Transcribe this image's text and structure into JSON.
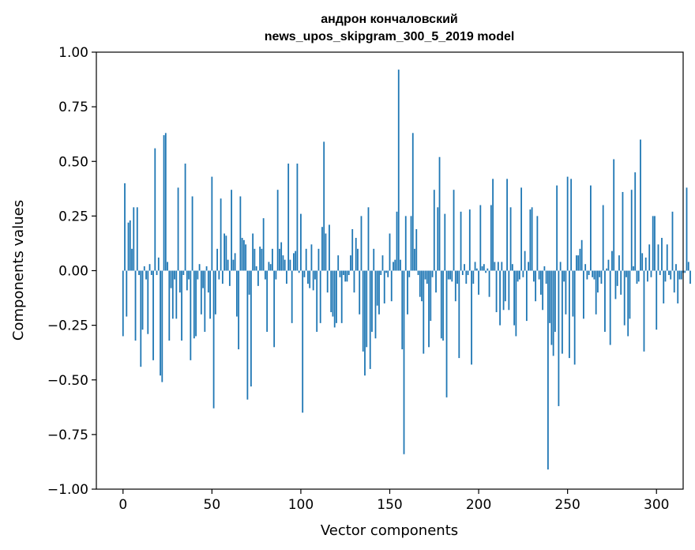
{
  "chart_data": {
    "type": "bar",
    "title_line1": "андрон кончаловский",
    "title_line2": "news_upos_skipgram_300_5_2019 model",
    "xlabel": "Vector components",
    "ylabel": "Components values",
    "xlim": [
      -15,
      315
    ],
    "ylim": [
      -1.0,
      1.0
    ],
    "xticks": [
      0,
      50,
      100,
      150,
      200,
      250,
      300
    ],
    "xtick_labels": [
      "0",
      "50",
      "100",
      "150",
      "200",
      "250",
      "300"
    ],
    "yticks": [
      1.0,
      0.75,
      0.5,
      0.25,
      0.0,
      -0.25,
      -0.5,
      -0.75,
      -1.0
    ],
    "ytick_labels": [
      "1.00",
      "0.75",
      "0.50",
      "0.25",
      "0.00",
      "−0.25",
      "−0.50",
      "−0.75",
      "−1.00"
    ],
    "bar_color": "#1f77b4",
    "values": [
      -0.3,
      0.4,
      -0.21,
      0.22,
      0.23,
      0.1,
      0.29,
      -0.32,
      0.29,
      -0.02,
      -0.44,
      -0.27,
      0.02,
      -0.04,
      -0.29,
      0.03,
      -0.02,
      -0.41,
      0.56,
      -0.02,
      0.06,
      -0.48,
      -0.51,
      0.62,
      0.63,
      0.04,
      -0.32,
      -0.08,
      -0.22,
      -0.04,
      -0.22,
      0.38,
      -0.1,
      -0.32,
      -0.02,
      0.49,
      -0.09,
      -0.04,
      -0.41,
      0.34,
      -0.31,
      -0.3,
      -0.04,
      0.03,
      -0.2,
      -0.08,
      -0.28,
      0.02,
      -0.1,
      -0.22,
      0.43,
      -0.63,
      -0.2,
      0.1,
      -0.04,
      0.33,
      -0.06,
      0.17,
      0.16,
      0.05,
      -0.07,
      0.37,
      0.05,
      0.08,
      -0.21,
      -0.36,
      0.34,
      0.15,
      0.14,
      0.12,
      -0.59,
      -0.11,
      -0.53,
      0.17,
      0.1,
      0.02,
      -0.07,
      0.11,
      0.1,
      0.24,
      -0.04,
      -0.28,
      0.04,
      0.03,
      0.1,
      -0.35,
      -0.04,
      0.37,
      0.1,
      0.13,
      0.07,
      0.05,
      -0.06,
      0.49,
      0.05,
      -0.24,
      0.08,
      0.09,
      0.49,
      -0.01,
      0.26,
      -0.65,
      -0.03,
      0.1,
      -0.06,
      -0.08,
      0.12,
      -0.09,
      -0.04,
      -0.28,
      0.1,
      -0.24,
      0.2,
      0.59,
      0.17,
      -0.1,
      0.21,
      -0.19,
      -0.21,
      -0.26,
      -0.24,
      0.07,
      -0.03,
      -0.24,
      -0.02,
      -0.05,
      -0.05,
      -0.02,
      0.07,
      0.19,
      -0.1,
      0.15,
      0.1,
      -0.2,
      0.25,
      -0.37,
      -0.48,
      -0.35,
      0.29,
      -0.45,
      -0.28,
      0.1,
      -0.31,
      -0.16,
      -0.2,
      -0.02,
      0.07,
      -0.15,
      -0.01,
      -0.03,
      0.17,
      -0.14,
      0.04,
      0.05,
      0.27,
      0.92,
      0.05,
      -0.36,
      -0.84,
      0.25,
      -0.2,
      -0.03,
      0.25,
      0.63,
      0.1,
      0.19,
      -0.02,
      -0.12,
      -0.14,
      -0.38,
      -0.04,
      -0.06,
      -0.35,
      -0.23,
      -0.03,
      0.37,
      -0.1,
      0.29,
      0.52,
      -0.31,
      -0.32,
      0.26,
      -0.58,
      -0.04,
      -0.04,
      -0.05,
      0.37,
      -0.14,
      -0.06,
      -0.4,
      0.27,
      -0.02,
      0.03,
      -0.06,
      -0.02,
      0.28,
      -0.43,
      -0.06,
      0.04,
      0.01,
      -0.11,
      0.3,
      0.02,
      0.03,
      -0.01,
      0.01,
      -0.12,
      0.3,
      0.42,
      0.04,
      -0.19,
      0.04,
      -0.25,
      0.04,
      -0.18,
      -0.14,
      0.42,
      -0.18,
      0.29,
      0.03,
      -0.25,
      -0.3,
      -0.05,
      -0.04,
      0.38,
      -0.03,
      0.09,
      -0.23,
      0.04,
      0.28,
      0.29,
      -0.05,
      -0.14,
      0.25,
      -0.04,
      -0.11,
      -0.18,
      0.02,
      -0.06,
      -0.91,
      -0.24,
      -0.34,
      -0.39,
      -0.28,
      0.39,
      -0.62,
      0.04,
      -0.38,
      -0.05,
      -0.2,
      0.43,
      -0.4,
      0.42,
      -0.21,
      -0.43,
      0.07,
      0.07,
      0.1,
      0.14,
      -0.22,
      0.03,
      -0.04,
      -0.02,
      0.39,
      -0.03,
      -0.04,
      -0.2,
      -0.1,
      -0.03,
      -0.06,
      0.3,
      -0.28,
      0.01,
      0.05,
      -0.34,
      0.09,
      0.51,
      -0.13,
      -0.07,
      0.07,
      -0.11,
      0.36,
      -0.25,
      -0.03,
      -0.3,
      -0.22,
      0.37,
      0.02,
      0.45,
      -0.06,
      -0.05,
      0.6,
      0.08,
      -0.37,
      0.06,
      -0.05,
      0.12,
      -0.03,
      0.25,
      0.25,
      -0.27,
      0.12,
      -0.02,
      0.15,
      -0.15,
      -0.05,
      0.12,
      -0.02,
      -0.04,
      0.27,
      -0.1,
      0.03,
      -0.15,
      -0.04,
      -0.04,
      -0.01,
      -0.01,
      0.38,
      0.04,
      -0.06
    ]
  }
}
